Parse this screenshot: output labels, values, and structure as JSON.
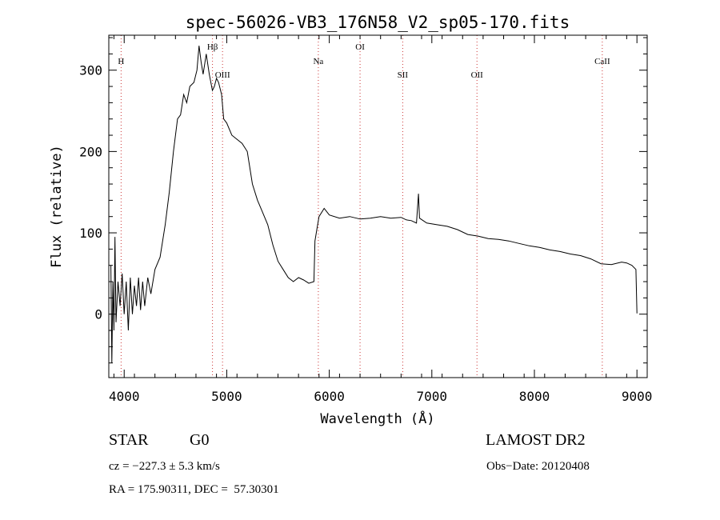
{
  "chart_data": {
    "type": "line",
    "title": "spec-56026-VB3_176N58_V2_sp05-170.fits",
    "xlabel": "Wavelength (Å)",
    "ylabel": "Flux (relative)",
    "xlim": [
      3850,
      9100
    ],
    "ylim": [
      -78,
      343
    ],
    "xticks": [
      4000,
      5000,
      6000,
      7000,
      8000,
      9000
    ],
    "yticks": [
      0,
      100,
      200,
      300
    ],
    "grid": false,
    "series": [
      {
        "color": "#000000",
        "points": [
          [
            3870,
            60
          ],
          [
            3880,
            -60
          ],
          [
            3890,
            40
          ],
          [
            3900,
            -20
          ],
          [
            3910,
            95
          ],
          [
            3920,
            -10
          ],
          [
            3940,
            40
          ],
          [
            3960,
            10
          ],
          [
            3980,
            50
          ],
          [
            4000,
            0
          ],
          [
            4020,
            40
          ],
          [
            4040,
            -20
          ],
          [
            4060,
            45
          ],
          [
            4080,
            0
          ],
          [
            4100,
            35
          ],
          [
            4120,
            10
          ],
          [
            4140,
            45
          ],
          [
            4160,
            5
          ],
          [
            4180,
            40
          ],
          [
            4200,
            10
          ],
          [
            4230,
            45
          ],
          [
            4260,
            25
          ],
          [
            4300,
            55
          ],
          [
            4350,
            70
          ],
          [
            4400,
            110
          ],
          [
            4440,
            150
          ],
          [
            4480,
            200
          ],
          [
            4520,
            240
          ],
          [
            4550,
            245
          ],
          [
            4580,
            270
          ],
          [
            4610,
            260
          ],
          [
            4640,
            280
          ],
          [
            4680,
            285
          ],
          [
            4710,
            300
          ],
          [
            4730,
            330
          ],
          [
            4750,
            310
          ],
          [
            4770,
            295
          ],
          [
            4800,
            320
          ],
          [
            4830,
            295
          ],
          [
            4860,
            275
          ],
          [
            4880,
            280
          ],
          [
            4900,
            290
          ],
          [
            4920,
            285
          ],
          [
            4950,
            270
          ],
          [
            4970,
            240
          ],
          [
            5000,
            235
          ],
          [
            5050,
            220
          ],
          [
            5100,
            215
          ],
          [
            5150,
            210
          ],
          [
            5200,
            200
          ],
          [
            5250,
            160
          ],
          [
            5300,
            140
          ],
          [
            5350,
            125
          ],
          [
            5400,
            110
          ],
          [
            5450,
            85
          ],
          [
            5500,
            65
          ],
          [
            5550,
            55
          ],
          [
            5600,
            45
          ],
          [
            5650,
            40
          ],
          [
            5700,
            45
          ],
          [
            5750,
            42
          ],
          [
            5800,
            38
          ],
          [
            5850,
            40
          ],
          [
            5860,
            90
          ],
          [
            5880,
            105
          ],
          [
            5900,
            120
          ],
          [
            5950,
            130
          ],
          [
            6000,
            122
          ],
          [
            6100,
            118
          ],
          [
            6200,
            120
          ],
          [
            6300,
            117
          ],
          [
            6400,
            118
          ],
          [
            6500,
            120
          ],
          [
            6600,
            118
          ],
          [
            6700,
            119
          ],
          [
            6750,
            116
          ],
          [
            6800,
            115
          ],
          [
            6850,
            112
          ],
          [
            6870,
            148
          ],
          [
            6880,
            118
          ],
          [
            6950,
            112
          ],
          [
            7050,
            110
          ],
          [
            7150,
            108
          ],
          [
            7250,
            104
          ],
          [
            7350,
            98
          ],
          [
            7450,
            96
          ],
          [
            7550,
            93
          ],
          [
            7650,
            92
          ],
          [
            7750,
            90
          ],
          [
            7850,
            87
          ],
          [
            7950,
            84
          ],
          [
            8050,
            82
          ],
          [
            8150,
            79
          ],
          [
            8250,
            77
          ],
          [
            8350,
            74
          ],
          [
            8450,
            72
          ],
          [
            8550,
            68
          ],
          [
            8650,
            62
          ],
          [
            8750,
            61
          ],
          [
            8850,
            64
          ],
          [
            8900,
            63
          ],
          [
            8950,
            60
          ],
          [
            8990,
            55
          ],
          [
            9000,
            1
          ]
        ]
      }
    ],
    "lines": [
      {
        "label": "H",
        "wavelength": 3970
      },
      {
        "label": "Hβ",
        "wavelength": 4861
      },
      {
        "label": "OIII",
        "wavelength": 4959
      },
      {
        "label": "Na",
        "wavelength": 5893
      },
      {
        "label": "OI",
        "wavelength": 6300
      },
      {
        "label": "SII",
        "wavelength": 6716
      },
      {
        "label": "OII",
        "wavelength": 7440
      },
      {
        "label": "CaII",
        "wavelength": 8662
      }
    ]
  },
  "info": {
    "class": "STAR",
    "subclass": "G0",
    "survey": "LAMOST DR2",
    "cz": "cz = −227.3 ± 5.3 km/s",
    "obs_date": "Obs−Date: 20120408",
    "coords": "RA = 175.90311, DEC =  57.30301"
  }
}
